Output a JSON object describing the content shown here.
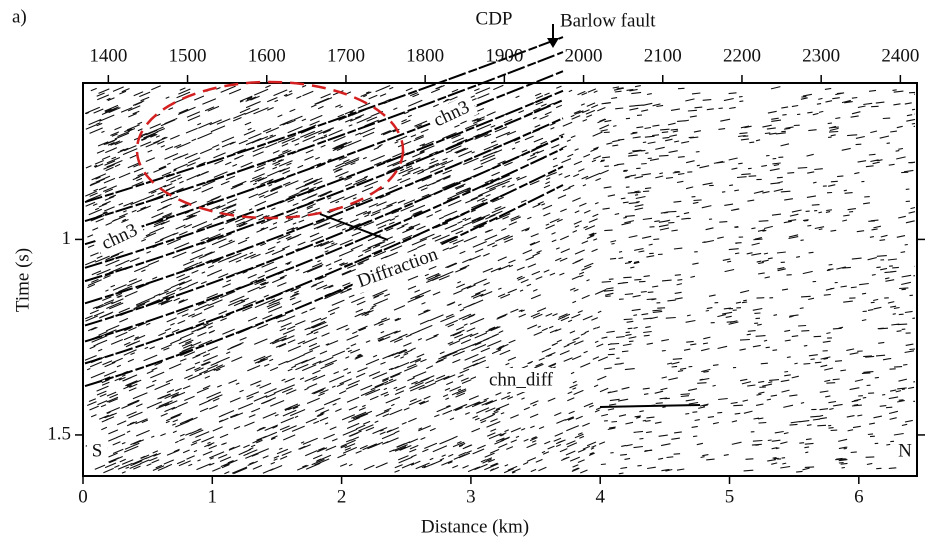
{
  "panel_label": "a)",
  "top_axis": {
    "label": "CDP",
    "lim": [
      1368,
      2421
    ],
    "ticks": [
      1400,
      1500,
      1600,
      1700,
      1800,
      1900,
      2000,
      2100,
      2200,
      2300,
      2400
    ]
  },
  "bottom_axis": {
    "label": "Distance (km)",
    "lim": [
      0,
      6.45
    ],
    "ticks": [
      0,
      1,
      2,
      3,
      4,
      5,
      6
    ]
  },
  "left_axis": {
    "label": "Time (s)",
    "lim": [
      0.6,
      1.605
    ],
    "ticks": [
      1,
      1.5
    ]
  },
  "annotations": {
    "fault": "Barlow fault",
    "horizon_upper": "chn3",
    "horizon_lower": "chn3",
    "diffraction": "Diffraction",
    "channel": "chn_diff",
    "south": "S",
    "north": "N"
  }
}
